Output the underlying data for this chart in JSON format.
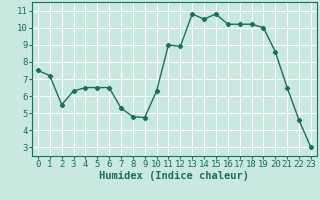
{
  "x": [
    0,
    1,
    2,
    3,
    4,
    5,
    6,
    7,
    8,
    9,
    10,
    11,
    12,
    13,
    14,
    15,
    16,
    17,
    18,
    19,
    20,
    21,
    22,
    23
  ],
  "y": [
    7.5,
    7.2,
    5.5,
    6.3,
    6.5,
    6.5,
    6.5,
    5.3,
    4.8,
    4.75,
    6.3,
    9.0,
    8.9,
    10.8,
    10.5,
    10.8,
    10.2,
    10.2,
    10.2,
    10.0,
    8.6,
    6.5,
    4.6,
    3.0
  ],
  "line_color": "#1a7060",
  "marker": "D",
  "marker_size": 2.2,
  "line_width": 1.0,
  "bg_color": "#c8e8e0",
  "grid_color": "#ffffff",
  "xlabel": "Humidex (Indice chaleur)",
  "xlabel_fontsize": 7.5,
  "tick_fontsize": 6.5,
  "xlim": [
    -0.5,
    23.5
  ],
  "ylim": [
    2.5,
    11.5
  ],
  "yticks": [
    3,
    4,
    5,
    6,
    7,
    8,
    9,
    10,
    11
  ],
  "xticks": [
    0,
    1,
    2,
    3,
    4,
    5,
    6,
    7,
    8,
    9,
    10,
    11,
    12,
    13,
    14,
    15,
    16,
    17,
    18,
    19,
    20,
    21,
    22,
    23
  ]
}
